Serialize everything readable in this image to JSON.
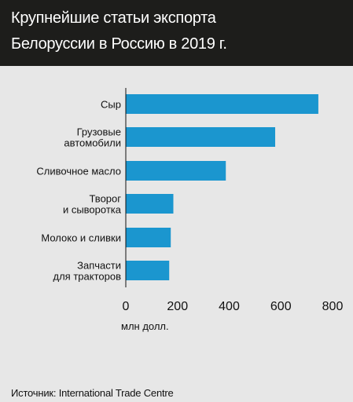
{
  "title": {
    "line1": "Крупнейшие статьи экспорта",
    "line2": "Белоруссии в Россию в 2019 г."
  },
  "source": "Источник: International Trade Centre",
  "colors": {
    "bar": "#1b96cf",
    "title_bg": "#1d1d1b",
    "panel_bg": "#e7e7e7"
  },
  "chart_data": {
    "type": "bar",
    "orientation": "horizontal",
    "categories": [
      [
        "Сыр"
      ],
      [
        "Грузовые",
        "автомобили"
      ],
      [
        "Сливочное масло"
      ],
      [
        "Творог",
        "и сыворотка"
      ],
      [
        "Молоко и сливки"
      ],
      [
        "Запчасти",
        "для тракторов"
      ]
    ],
    "values": [
      745,
      578,
      387,
      184,
      174,
      168
    ],
    "xlabel": "млн долл.",
    "xlim": [
      0,
      800
    ],
    "xticks": [
      "0",
      "200",
      "400",
      "600",
      "800"
    ],
    "grid": false,
    "legend": false
  }
}
